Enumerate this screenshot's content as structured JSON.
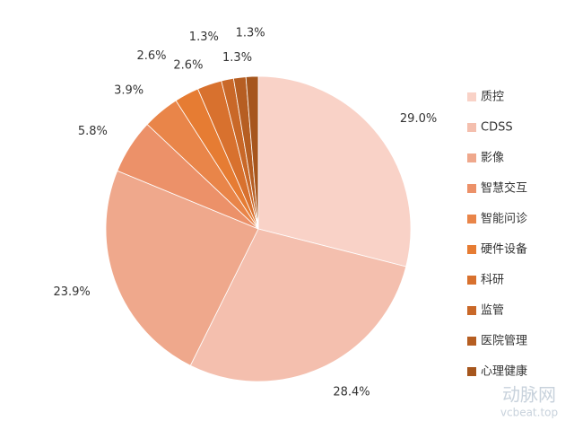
{
  "chart_data": {
    "type": "pie",
    "categories": [
      "质控",
      "CDSS",
      "影像",
      "智慧交互",
      "智能问诊",
      "硬件设备",
      "科研",
      "监管",
      "医院管理",
      "心理健康"
    ],
    "values": [
      29.0,
      28.4,
      23.9,
      5.8,
      3.9,
      2.6,
      2.6,
      1.3,
      1.3,
      1.3
    ],
    "value_labels": [
      "29.0%",
      "28.4%",
      "23.9%",
      "5.8%",
      "3.9%",
      "2.6%",
      "2.6%",
      "1.3%",
      "1.3%",
      "1.3%"
    ],
    "colors": [
      "#f9d2c7",
      "#f4bfae",
      "#efa88c",
      "#ec9169",
      "#e98549",
      "#e67c33",
      "#d8712e",
      "#c96828",
      "#b65e22",
      "#a6561d"
    ],
    "legend": "right"
  },
  "watermark": {
    "name": "动脉网",
    "url": "vcbeat.top"
  }
}
